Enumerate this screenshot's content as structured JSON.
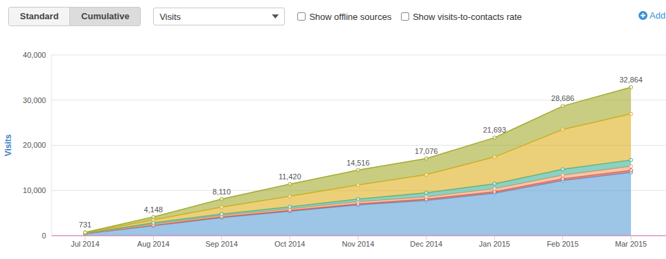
{
  "toolbar": {
    "buttons": [
      "Standard",
      "Cumulative"
    ],
    "active": "Cumulative",
    "dropdown": "Visits",
    "checkboxes": [
      "Show offline sources",
      "Show visits-to-contacts rate"
    ],
    "add": "Add"
  },
  "chart_data": {
    "type": "area",
    "stacked": true,
    "grid": true,
    "y_label": "Visits",
    "categories": [
      "Jul 2014",
      "Aug 2014",
      "Sep 2014",
      "Oct 2014",
      "Nov 2014",
      "Dec 2014",
      "Jan 2015",
      "Feb 2015",
      "Mar 2015"
    ],
    "series": [
      {
        "color": "#5b9fd6",
        "values": [
          420,
          2200,
          4000,
          5400,
          6800,
          7800,
          9400,
          12200,
          14000
        ]
      },
      {
        "color": "#d9534f",
        "values": [
          20,
          100,
          150,
          200,
          250,
          300,
          350,
          400,
          450
        ]
      },
      {
        "color": "#f0a070",
        "values": [
          50,
          250,
          300,
          350,
          450,
          500,
          650,
          800,
          900
        ]
      },
      {
        "color": "#3fb39a",
        "values": [
          60,
          300,
          350,
          450,
          600,
          900,
          1100,
          1300,
          1400
        ]
      },
      {
        "color": "#e0b020",
        "values": [
          100,
          650,
          1500,
          2300,
          3100,
          4000,
          5900,
          8800,
          10200
        ]
      },
      {
        "color": "#a3ab2e",
        "values": [
          81,
          648,
          1810,
          2720,
          3316,
          3576,
          4293,
          5186,
          5914
        ]
      }
    ],
    "totals": {
      "values": [
        731,
        4148,
        8110,
        11420,
        14516,
        17076,
        21693,
        28686,
        32864
      ],
      "value_labels": [
        "731",
        "4,148",
        "8,110",
        "11,420",
        "14,516",
        "17,076",
        "21,693",
        "28,686",
        "32,864"
      ]
    },
    "ylim": [
      0,
      40000
    ],
    "yticks": [
      0,
      {
        "value": 10000,
        "label": "10,000"
      },
      {
        "value": 20000,
        "label": "20,000"
      },
      {
        "value": 30000,
        "label": "30,000"
      },
      {
        "value": 40000,
        "label": "40,000"
      }
    ]
  }
}
